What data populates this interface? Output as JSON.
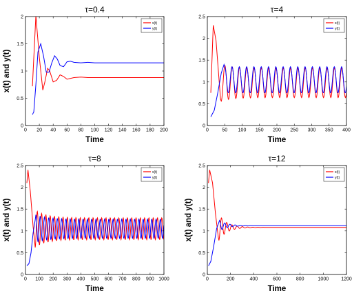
{
  "chart_data": [
    {
      "type": "line",
      "title": "τ=0.4",
      "xlabel": "Time",
      "ylabel": "x(t) and y(t)",
      "xlim": [
        0,
        200
      ],
      "ylim": [
        0,
        2
      ],
      "xticks": [
        0,
        20,
        40,
        60,
        80,
        100,
        120,
        140,
        160,
        180,
        200
      ],
      "yticks": [
        0,
        0.5,
        1,
        1.5,
        2
      ],
      "ytick_labels": [
        "0",
        "0.5",
        "1",
        "1.5",
        "2"
      ],
      "legend_position": "top-right",
      "series": [
        {
          "name": "x(t)",
          "color": "#ff0000",
          "x": [
            10,
            13,
            15,
            20,
            25,
            28,
            32,
            35,
            40,
            45,
            50,
            55,
            60,
            70,
            80,
            90,
            100,
            120,
            140,
            160,
            180,
            200
          ],
          "y": [
            0.72,
            1.5,
            2.02,
            1.25,
            0.65,
            0.8,
            1.05,
            1.0,
            0.8,
            0.83,
            0.93,
            0.9,
            0.85,
            0.88,
            0.89,
            0.88,
            0.88,
            0.88,
            0.88,
            0.88,
            0.88,
            0.88
          ]
        },
        {
          "name": "y(t)",
          "color": "#0000ff",
          "x": [
            10,
            12,
            15,
            18,
            22,
            26,
            30,
            34,
            38,
            42,
            46,
            50,
            55,
            60,
            65,
            70,
            80,
            90,
            100,
            120,
            140,
            160,
            180,
            200
          ],
          "y": [
            0.2,
            0.25,
            0.75,
            1.35,
            1.5,
            1.28,
            0.98,
            0.98,
            1.15,
            1.28,
            1.22,
            1.1,
            1.08,
            1.17,
            1.18,
            1.16,
            1.15,
            1.16,
            1.15,
            1.15,
            1.15,
            1.15,
            1.15,
            1.15
          ]
        }
      ]
    },
    {
      "type": "line",
      "title": "τ=4",
      "xlabel": "Time",
      "ylabel": "",
      "xlim": [
        0,
        400
      ],
      "ylim": [
        0,
        2.5
      ],
      "xticks": [
        0,
        50,
        100,
        150,
        200,
        250,
        300,
        350,
        400
      ],
      "yticks": [
        0,
        0.5,
        1,
        1.5,
        2,
        2.5
      ],
      "ytick_labels": [
        "0",
        "0.5",
        "1",
        "1.5",
        "2",
        "2.5"
      ],
      "legend_position": "top-right",
      "series": [
        {
          "name": "x(t)",
          "color": "#ff0000",
          "start": [
            10,
            0.75
          ],
          "peak": [
            17,
            2.3
          ],
          "period": 21,
          "center": 0.98,
          "amplitude": 0.34,
          "first_min": [
            38,
            0.6
          ]
        },
        {
          "name": "y(t)",
          "color": "#0000ff",
          "start": [
            10,
            0.2
          ],
          "peak": [
            48,
            1.4
          ],
          "period": 21,
          "center": 1.05,
          "amplitude": 0.3
        }
      ]
    },
    {
      "type": "line",
      "title": "τ=8",
      "xlabel": "Time",
      "ylabel": "x(t) and y(t)",
      "xlim": [
        0,
        1000
      ],
      "ylim": [
        0,
        2.5
      ],
      "xticks": [
        0,
        100,
        200,
        300,
        400,
        500,
        600,
        700,
        800,
        900,
        1000
      ],
      "yticks": [
        0,
        0.5,
        1,
        1.5,
        2,
        2.5
      ],
      "ytick_labels": [
        "0",
        "0.5",
        "1",
        "1.5",
        "2",
        "2.5"
      ],
      "legend_position": "top-right",
      "series": [
        {
          "name": "x(t)",
          "color": "#ff0000",
          "start": [
            10,
            2.1
          ],
          "peak": [
            18,
            2.4
          ],
          "period": 31,
          "center": 1.05,
          "amplitude": 0.25
        },
        {
          "name": "y(t)",
          "color": "#0000ff",
          "start": [
            10,
            0.2
          ],
          "period": 31,
          "center": 1.05,
          "amplitude": 0.22
        }
      ]
    },
    {
      "type": "line",
      "title": "τ=12",
      "xlabel": "Time",
      "ylabel": "x(t) and y(t)",
      "xlim": [
        0,
        1200
      ],
      "ylim": [
        0,
        2.5
      ],
      "xticks": [
        0,
        200,
        400,
        600,
        800,
        1000,
        1200
      ],
      "yticks": [
        0,
        0.5,
        1,
        1.5,
        2,
        2.5
      ],
      "ytick_labels": [
        "0",
        "0.5",
        "1",
        "1.5",
        "2",
        "2.5"
      ],
      "legend_position": "top-right",
      "series": [
        {
          "name": "x(t)",
          "color": "#ff0000",
          "start": [
            10,
            2.1
          ],
          "peak": [
            20,
            2.4
          ],
          "period": 45,
          "center": 1.08,
          "amplitude": 0.15,
          "final": 1.08
        },
        {
          "name": "y(t)",
          "color": "#0000ff",
          "start": [
            10,
            0.2
          ],
          "period": 45,
          "center": 1.12,
          "amplitude": 0.1,
          "final": 1.12
        }
      ]
    }
  ]
}
